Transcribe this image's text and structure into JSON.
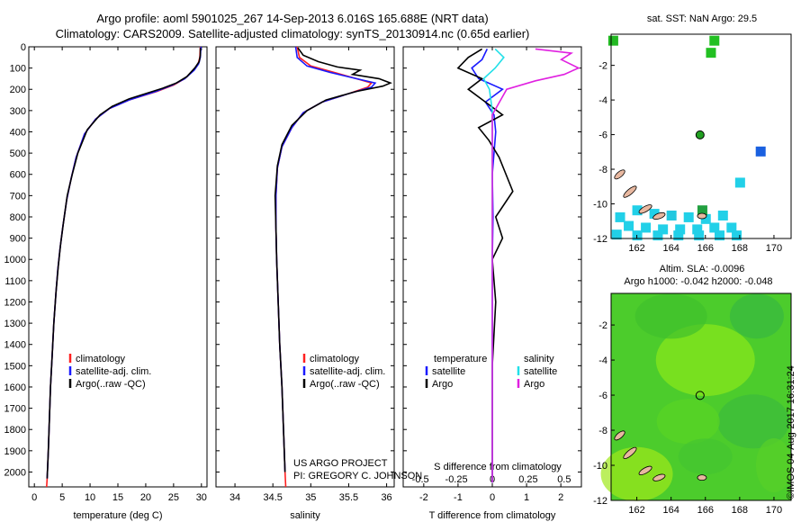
{
  "titles": {
    "line1": "Argo profile: aoml 5901025_267 14-Sep-2013 6.016S 165.688E (NRT data)",
    "line2": "Climatology: CARS2009. Satellite-adjusted climatology: synTS_20130914.nc (0.65d earlier)"
  },
  "colors": {
    "climatology": "#ff2020",
    "satellite": "#1a1aff",
    "argo": "#000000",
    "sat_salinity": "#22e0e8",
    "argo_salinity": "#e020e0"
  },
  "chart_data": [
    {
      "type": "line",
      "panel": "temperature",
      "xlabel": "temperature (deg C)",
      "ylabel": "",
      "xlim": [
        -1,
        31
      ],
      "ylim": [
        2070,
        0
      ],
      "xticks": [
        0,
        5,
        10,
        15,
        20,
        25,
        30
      ],
      "yticks": [
        0,
        100,
        200,
        300,
        400,
        500,
        600,
        700,
        800,
        900,
        1000,
        1100,
        1200,
        1300,
        1400,
        1500,
        1600,
        1700,
        1800,
        1900,
        2000
      ],
      "legend": [
        "climatology",
        "satellite-adj. clim.",
        "Argo(..raw -QC)"
      ],
      "legend_placement": "lower-center",
      "series": [
        {
          "name": "climatology",
          "points": [
            [
              29.8,
              0
            ],
            [
              29.7,
              50
            ],
            [
              29.4,
              80
            ],
            [
              28.6,
              110
            ],
            [
              27,
              150
            ],
            [
              25,
              180
            ],
            [
              22,
              210
            ],
            [
              17,
              250
            ],
            [
              13.5,
              290
            ],
            [
              11,
              340
            ],
            [
              9,
              410
            ],
            [
              7.5,
              520
            ],
            [
              6.6,
              620
            ],
            [
              5.8,
              720
            ],
            [
              5.1,
              850
            ],
            [
              4.6,
              950
            ],
            [
              4.2,
              1050
            ],
            [
              3.9,
              1150
            ],
            [
              3.5,
              1300
            ],
            [
              3.2,
              1450
            ],
            [
              2.9,
              1600
            ],
            [
              2.7,
              1750
            ],
            [
              2.5,
              1900
            ],
            [
              2.3,
              2030
            ],
            [
              2.2,
              2070
            ]
          ]
        },
        {
          "name": "satellite-adj. clim.",
          "points": [
            [
              29.9,
              0
            ],
            [
              29.8,
              50
            ],
            [
              29.5,
              80
            ],
            [
              28.7,
              110
            ],
            [
              27,
              150
            ],
            [
              24.8,
              180
            ],
            [
              21.8,
              210
            ],
            [
              17,
              250
            ],
            [
              13.5,
              290
            ],
            [
              11,
              340
            ],
            [
              9,
              410
            ],
            [
              7.5,
              520
            ],
            [
              6.6,
              620
            ],
            [
              5.8,
              720
            ],
            [
              5.1,
              850
            ],
            [
              4.6,
              950
            ],
            [
              4.2,
              1050
            ],
            [
              3.9,
              1150
            ],
            [
              3.5,
              1300
            ],
            [
              3.2,
              1450
            ],
            [
              2.9,
              1600
            ],
            [
              2.7,
              1750
            ],
            [
              2.5,
              1900
            ],
            [
              2.3,
              2030
            ]
          ]
        },
        {
          "name": "Argo(..raw -QC)",
          "points": [
            [
              29.8,
              5
            ],
            [
              29.8,
              40
            ],
            [
              29.6,
              70
            ],
            [
              28.8,
              100
            ],
            [
              27.4,
              140
            ],
            [
              25.5,
              170
            ],
            [
              23,
              195
            ],
            [
              20,
              220
            ],
            [
              17,
              245
            ],
            [
              14,
              280
            ],
            [
              11.8,
              320
            ],
            [
              9.5,
              390
            ],
            [
              7.8,
              500
            ],
            [
              6.8,
              600
            ],
            [
              5.9,
              700
            ],
            [
              5.2,
              830
            ],
            [
              4.7,
              930
            ],
            [
              4.3,
              1030
            ],
            [
              3.9,
              1150
            ],
            [
              3.5,
              1300
            ],
            [
              3.2,
              1450
            ],
            [
              2.9,
              1600
            ],
            [
              2.7,
              1750
            ],
            [
              2.5,
              1900
            ],
            [
              2.3,
              2030
            ]
          ]
        }
      ]
    },
    {
      "type": "line",
      "panel": "salinity",
      "xlabel": "salinity",
      "ylabel": "",
      "xlim": [
        33.75,
        36.1
      ],
      "ylim": [
        2070,
        0
      ],
      "xticks": [
        34,
        34.5,
        35,
        35.5,
        36
      ],
      "legend": [
        "climatology",
        "satellite-adj. clim.",
        "Argo(..raw -QC)"
      ],
      "legend_placement": "lower-right",
      "series": [
        {
          "name": "climatology",
          "points": [
            [
              34.82,
              0
            ],
            [
              34.85,
              50
            ],
            [
              35,
              90
            ],
            [
              35.3,
              120
            ],
            [
              35.6,
              150
            ],
            [
              35.8,
              170
            ],
            [
              35.75,
              190
            ],
            [
              35.5,
              220
            ],
            [
              35.15,
              260
            ],
            [
              34.9,
              310
            ],
            [
              34.75,
              380
            ],
            [
              34.62,
              470
            ],
            [
              34.56,
              570
            ],
            [
              34.54,
              700
            ],
            [
              34.54,
              850
            ],
            [
              34.55,
              1000
            ],
            [
              34.57,
              1200
            ],
            [
              34.59,
              1400
            ],
            [
              34.62,
              1600
            ],
            [
              34.64,
              1800
            ],
            [
              34.66,
              2000
            ],
            [
              34.67,
              2070
            ]
          ]
        },
        {
          "name": "satellite-adj. clim.",
          "points": [
            [
              34.8,
              0
            ],
            [
              34.82,
              50
            ],
            [
              34.95,
              90
            ],
            [
              35.25,
              120
            ],
            [
              35.6,
              150
            ],
            [
              35.85,
              170
            ],
            [
              35.8,
              190
            ],
            [
              35.5,
              220
            ],
            [
              35.15,
              260
            ],
            [
              34.9,
              310
            ],
            [
              34.75,
              380
            ],
            [
              34.62,
              470
            ],
            [
              34.56,
              570
            ],
            [
              34.54,
              700
            ],
            [
              34.54,
              850
            ],
            [
              34.55,
              1000
            ],
            [
              34.57,
              1200
            ],
            [
              34.59,
              1400
            ],
            [
              34.62,
              1600
            ],
            [
              34.64,
              1800
            ],
            [
              34.66,
              2000
            ]
          ]
        },
        {
          "name": "Argo(..raw -QC)",
          "points": [
            [
              34.83,
              5
            ],
            [
              34.9,
              40
            ],
            [
              35.1,
              70
            ],
            [
              35.35,
              95
            ],
            [
              35.65,
              110
            ],
            [
              35.55,
              130
            ],
            [
              35.9,
              150
            ],
            [
              36.05,
              170
            ],
            [
              35.95,
              185
            ],
            [
              35.6,
              210
            ],
            [
              35.2,
              250
            ],
            [
              34.95,
              300
            ],
            [
              34.75,
              370
            ],
            [
              34.62,
              460
            ],
            [
              34.56,
              560
            ],
            [
              34.53,
              700
            ],
            [
              34.54,
              850
            ],
            [
              34.55,
              1000
            ],
            [
              34.57,
              1200
            ],
            [
              34.59,
              1400
            ],
            [
              34.62,
              1600
            ],
            [
              34.64,
              1800
            ],
            [
              34.66,
              2000
            ]
          ]
        }
      ]
    },
    {
      "type": "line",
      "panel": "difference",
      "xlabel": "T difference from climatology",
      "xlabel2": "S difference from climatology",
      "ylabel": "",
      "xlim": [
        -2.6,
        2.6
      ],
      "ylim": [
        2070,
        0
      ],
      "xticks": [
        -2,
        -1,
        0,
        1,
        2
      ],
      "xticks2": [
        -0.5,
        -0.25,
        0,
        0.25,
        0.5
      ],
      "xticks2_labels": [
        "-0.5",
        "-0.25",
        "0",
        "0.25",
        "0.5"
      ],
      "legend_groups": {
        "temperature": {
          "heading": "temperature",
          "items": [
            "satellite",
            "Argo"
          ]
        },
        "salinity": {
          "heading": "salinity",
          "items": [
            "satellite",
            "Argo"
          ]
        }
      },
      "series": [
        {
          "name": "temperature satellite",
          "points": [
            [
              -0.15,
              10
            ],
            [
              -0.3,
              60
            ],
            [
              -0.6,
              100
            ],
            [
              -0.4,
              150
            ],
            [
              0.3,
              200
            ],
            [
              -0.2,
              260
            ],
            [
              0.05,
              320
            ],
            [
              0.1,
              400
            ],
            [
              0.05,
              500
            ],
            [
              0,
              600
            ],
            [
              0.02,
              800
            ],
            [
              0,
              1000
            ],
            [
              0,
              1500
            ],
            [
              0,
              2050
            ]
          ]
        },
        {
          "name": "temperature Argo",
          "points": [
            [
              -0.3,
              10
            ],
            [
              -0.7,
              50
            ],
            [
              -1.0,
              100
            ],
            [
              -0.3,
              150
            ],
            [
              -0.7,
              200
            ],
            [
              -0.2,
              260
            ],
            [
              0.3,
              320
            ],
            [
              -0.4,
              380
            ],
            [
              -0.1,
              440
            ],
            [
              0.2,
              520
            ],
            [
              0.6,
              680
            ],
            [
              0.1,
              800
            ],
            [
              0.3,
              900
            ],
            [
              0,
              1000
            ],
            [
              0.1,
              1200
            ],
            [
              0,
              1500
            ],
            [
              0,
              2050
            ]
          ]
        },
        {
          "name": "salinity satellite",
          "points": [
            [
              0.02,
              10
            ],
            [
              0.08,
              50
            ],
            [
              0.02,
              100
            ],
            [
              -0.06,
              150
            ],
            [
              -0.02,
              200
            ],
            [
              0,
              300
            ],
            [
              0,
              500
            ],
            [
              0,
              1000
            ],
            [
              0,
              2050
            ]
          ]
        },
        {
          "name": "salinity Argo",
          "points": [
            [
              0.3,
              10
            ],
            [
              0.55,
              30
            ],
            [
              0.48,
              60
            ],
            [
              0.6,
              100
            ],
            [
              0.5,
              130
            ],
            [
              0.3,
              160
            ],
            [
              0.1,
              200
            ],
            [
              0.05,
              260
            ],
            [
              0,
              320
            ],
            [
              0,
              500
            ],
            [
              0,
              1000
            ],
            [
              0,
              2050
            ]
          ]
        }
      ]
    },
    {
      "type": "heatmap",
      "panel": "sst_map",
      "title": "sat. SST: NaN Argo: 29.5",
      "xlim": [
        160.5,
        171
      ],
      "ylim": [
        -12,
        -0.2
      ],
      "xticks": [
        162,
        164,
        166,
        168,
        170
      ],
      "yticks": [
        -2,
        -4,
        -6,
        -8,
        -10,
        -12
      ],
      "argo_position": [
        165.688,
        -6.016
      ]
    },
    {
      "type": "heatmap",
      "panel": "sla_map",
      "title": "Altim. SLA: -0.0096",
      "subtitle": "Argo h1000: -0.042 h2000: -0.048",
      "xlim": [
        160.5,
        171
      ],
      "ylim": [
        -12,
        -0.2
      ],
      "xticks": [
        162,
        164,
        166,
        168,
        170
      ],
      "yticks": [
        -2,
        -4,
        -6,
        -8,
        -10,
        -12
      ],
      "argo_position": [
        165.688,
        -6.016
      ]
    }
  ],
  "annotations": {
    "project": "US ARGO PROJECT",
    "pi": "PI: GREGORY C. JOHNSON"
  },
  "stamp": "©IMOS 04-Aug-2017 16:31:24"
}
